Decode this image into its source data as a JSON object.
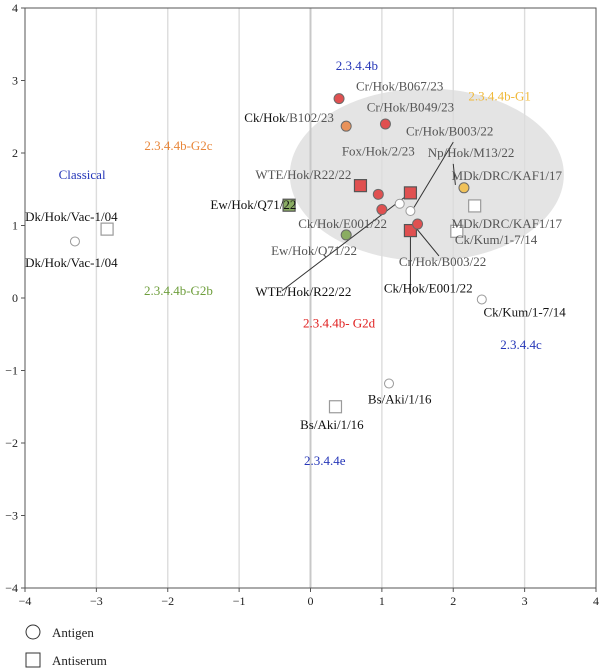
{
  "chart_data": {
    "type": "scatter",
    "xlim": [
      -4,
      4
    ],
    "ylim": [
      -4,
      4
    ],
    "xticks": [
      "−4",
      "−3",
      "−2",
      "−1",
      "0",
      "1",
      "2",
      "3",
      "4"
    ],
    "yticks": [
      "−4",
      "−3",
      "−2",
      "−1",
      "0",
      "1",
      "2",
      "3",
      "4"
    ],
    "grid": "vertical",
    "legend": {
      "placement": "bottom-left",
      "entries": [
        {
          "label": "Antigen",
          "marker": "circle"
        },
        {
          "label": "Antiserum",
          "marker": "square"
        }
      ]
    },
    "colors": {
      "red": "#e05050",
      "orange": "#e8925a",
      "yellow": "#f0c25a",
      "green": "#8aad62",
      "open": "#ffffff",
      "cluster_fill": "#e4e4e4"
    },
    "cluster_region": {
      "cx": 1.63,
      "cy": 1.7,
      "rx": 1.92,
      "ry": 1.19
    },
    "antigens": [
      {
        "x": -3.3,
        "y": 0.78,
        "fill": "open"
      },
      {
        "x": 0.4,
        "y": 2.75,
        "fill": "red"
      },
      {
        "x": 0.5,
        "y": 2.37,
        "fill": "orange"
      },
      {
        "x": 1.05,
        "y": 2.4,
        "fill": "red"
      },
      {
        "x": 0.95,
        "y": 1.43,
        "fill": "red"
      },
      {
        "x": 1.0,
        "y": 1.22,
        "fill": "red"
      },
      {
        "x": 0.5,
        "y": 0.87,
        "fill": "green"
      },
      {
        "x": 1.25,
        "y": 1.3,
        "fill": "open"
      },
      {
        "x": 1.4,
        "y": 1.2,
        "fill": "open"
      },
      {
        "x": 1.5,
        "y": 1.02,
        "fill": "red"
      },
      {
        "x": 2.15,
        "y": 1.52,
        "fill": "yellow"
      },
      {
        "x": 2.4,
        "y": -0.02,
        "fill": "open"
      },
      {
        "x": 1.1,
        "y": -1.18,
        "fill": "open"
      }
    ],
    "antisera": [
      {
        "x": -2.85,
        "y": 0.95,
        "fill": "open"
      },
      {
        "x": -0.3,
        "y": 1.28,
        "fill": "green"
      },
      {
        "x": 0.7,
        "y": 1.55,
        "fill": "red"
      },
      {
        "x": 1.4,
        "y": 1.45,
        "fill": "red"
      },
      {
        "x": 1.4,
        "y": 0.93,
        "fill": "red"
      },
      {
        "x": 2.3,
        "y": 1.27,
        "fill": "open"
      },
      {
        "x": 2.05,
        "y": 0.92,
        "fill": "open"
      },
      {
        "x": 0.35,
        "y": -1.5,
        "fill": "open"
      }
    ],
    "cluster_labels": [
      {
        "text": "2.3.4.4b",
        "x": 0.65,
        "y": 3.2,
        "color": "#2536b8"
      },
      {
        "text": "2.3.4.4b-G1",
        "x": 2.65,
        "y": 2.78,
        "color": "#f0b93a"
      },
      {
        "text": "2.3.4.4b-G2c",
        "x": -1.85,
        "y": 2.1,
        "color": "#e8863a"
      },
      {
        "text": "Classical",
        "x": -3.2,
        "y": 1.7,
        "color": "#2536b8"
      },
      {
        "text": "2.3.4.4b-G2b",
        "x": -1.85,
        "y": 0.1,
        "color": "#6e9e3c"
      },
      {
        "text": "2.3.4.4b- G2d",
        "x": 0.4,
        "y": -0.35,
        "color": "#e02020"
      },
      {
        "text": "2.3.4.4c",
        "x": 2.95,
        "y": -0.65,
        "color": "#2536b8"
      },
      {
        "text": "2.3.4.4e",
        "x": 0.2,
        "y": -2.25,
        "color": "#2536b8"
      }
    ],
    "point_labels": [
      {
        "text": "Dk/Hok/Vac-1/04",
        "x": -3.35,
        "y": 1.12,
        "color": "#111"
      },
      {
        "text": "Dk/Hok/Vac-1/04",
        "x": -3.35,
        "y": 0.48,
        "color": "#111"
      },
      {
        "text": "Cr/Hok/B067/23",
        "x": 1.25,
        "y": 2.92,
        "color": "#555"
      },
      {
        "text": "Cr/Hok/B049/23",
        "x": 1.4,
        "y": 2.63,
        "color": "#555"
      },
      {
        "text": "Ck/Hok/B102/23",
        "x": -0.3,
        "y": 2.48,
        "color": "#555",
        "prefix": "Ck/Hok"
      },
      {
        "text": "Cr/Hok/B003/22",
        "x": 1.95,
        "y": 2.3,
        "color": "#555"
      },
      {
        "text": "Fox/Hok/2/23",
        "x": 0.95,
        "y": 2.02,
        "color": "#555"
      },
      {
        "text": "Np/Hok/M13/22",
        "x": 2.25,
        "y": 2.0,
        "color": "#555"
      },
      {
        "text": "WTE/Hok/R22/22",
        "x": -0.1,
        "y": 1.7,
        "color": "#555"
      },
      {
        "text": "MDk/DRC/KAF1/17",
        "x": 2.75,
        "y": 1.68,
        "color": "#555"
      },
      {
        "text": "Ew/Hok/Q71/22",
        "x": -0.8,
        "y": 1.28,
        "color": "#111"
      },
      {
        "text": "Ck/Hok/E001/22",
        "x": 0.45,
        "y": 1.02,
        "color": "#555"
      },
      {
        "text": "MDk/DRC/KAF1/17",
        "x": 2.75,
        "y": 1.02,
        "color": "#555"
      },
      {
        "text": "Ck/Kum/1-7/14",
        "x": 2.6,
        "y": 0.8,
        "color": "#555"
      },
      {
        "text": "Ew/Hok/Q71/22",
        "x": 0.05,
        "y": 0.65,
        "color": "#555"
      },
      {
        "text": "Cr/Hok/B003/22",
        "x": 1.85,
        "y": 0.5,
        "color": "#555"
      },
      {
        "text": "Ck/Hok/E001/22",
        "x": 1.65,
        "y": 0.13,
        "color": "#111"
      },
      {
        "text": "WTE/Hok/R22/22",
        "x": -0.1,
        "y": 0.08,
        "color": "#111"
      },
      {
        "text": "Ck/Kum/1-7/14",
        "x": 3.0,
        "y": -0.2,
        "color": "#111"
      },
      {
        "text": "Bs/Aki/1/16",
        "x": 1.25,
        "y": -1.4,
        "color": "#111"
      },
      {
        "text": "Bs/Aki/1/16",
        "x": 0.3,
        "y": -1.75,
        "color": "#111"
      }
    ],
    "leader_lines": [
      {
        "from": [
          2.0,
          2.15
        ],
        "to": [
          1.45,
          1.25
        ]
      },
      {
        "from": [
          -0.4,
          0.1
        ],
        "to": [
          1.4,
          1.45
        ]
      },
      {
        "from": [
          1.4,
          0.05
        ],
        "to": [
          1.4,
          0.92
        ]
      },
      {
        "from": [
          1.8,
          0.58
        ],
        "to": [
          1.45,
          1.0
        ]
      },
      {
        "from": [
          2.0,
          1.85
        ],
        "to": [
          2.03,
          1.56
        ]
      }
    ]
  }
}
